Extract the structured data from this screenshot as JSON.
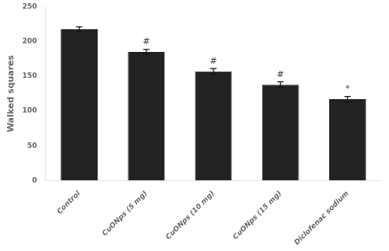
{
  "chart_data": {
    "type": "bar",
    "categories": [
      "Control",
      "CuONps (5 mg)",
      "CuONps (10 mg)",
      "CuONps (15 mg)",
      "Diclofenac sodium"
    ],
    "values": [
      218,
      185,
      157,
      138,
      117
    ],
    "errors": [
      3.0,
      3.5,
      4.0,
      4.0,
      4.0
    ],
    "color": "#222222",
    "ylabel": "Walked squares",
    "ylim": [
      0,
      250
    ],
    "yticks": [
      0,
      50,
      100,
      150,
      200,
      250
    ],
    "annotations": [
      {
        "text": "#",
        "x": "CuONps (5 mg)",
        "y": 193
      },
      {
        "text": "#",
        "x": "CuONps (10 mg)",
        "y": 165
      },
      {
        "text": "#",
        "x": "CuONps (15 mg)",
        "y": 146
      },
      {
        "text": "*",
        "x": "Diclofenac sodium",
        "y": 125
      }
    ],
    "grid": false
  }
}
